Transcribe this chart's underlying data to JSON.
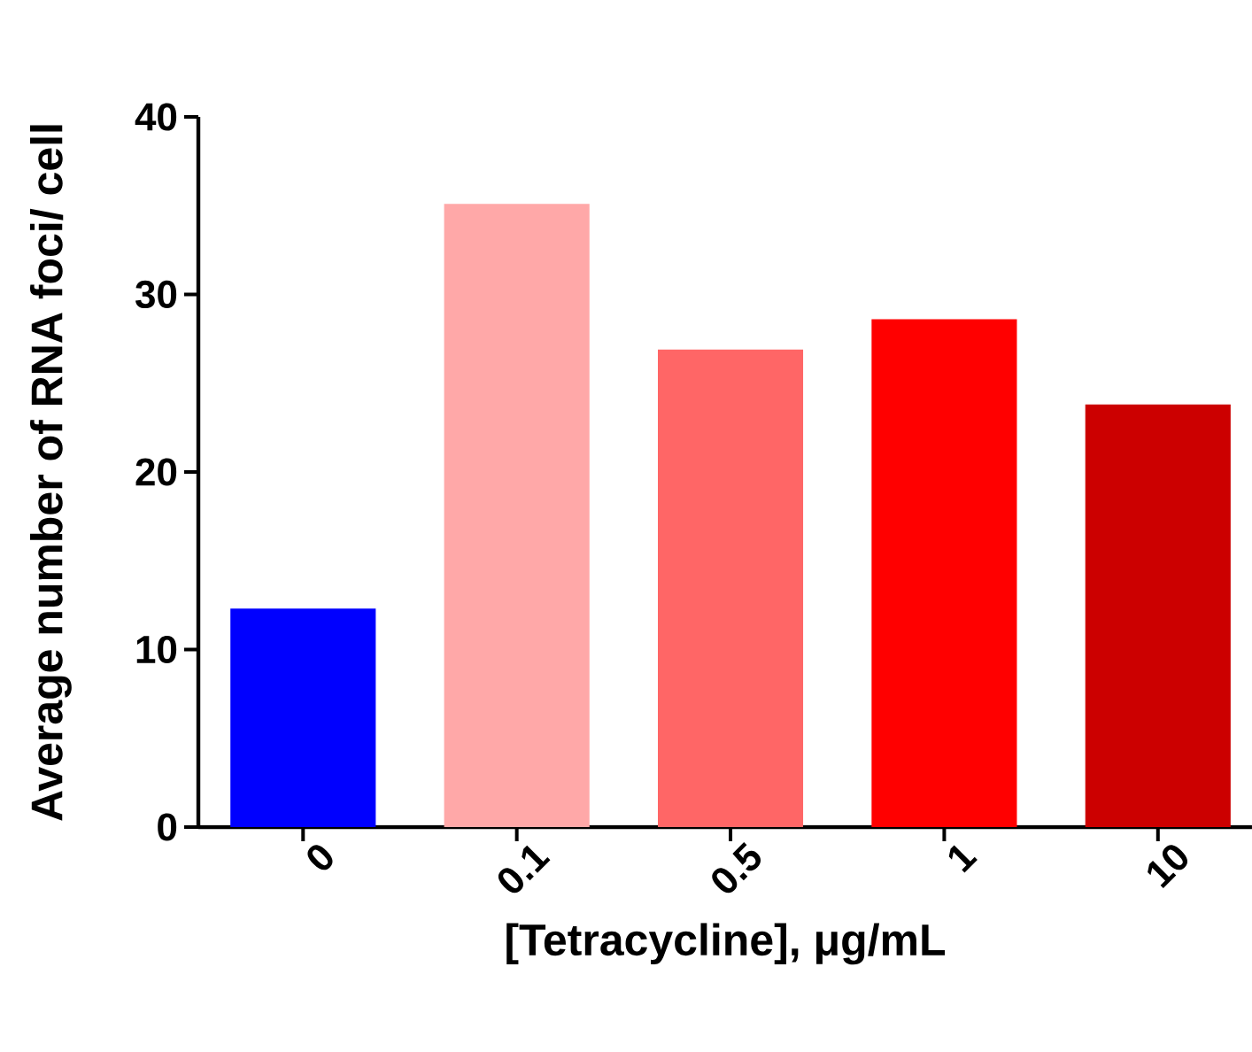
{
  "chart_data": {
    "type": "bar",
    "xlabel": "[Tetracycline], μg/mL",
    "ylabel": "Average number of RNA foci/ cell",
    "categories": [
      "0",
      "0.1",
      "0.5",
      "1",
      "10"
    ],
    "values": [
      12.3,
      35.1,
      26.9,
      28.6,
      23.8
    ],
    "colors": [
      "#0000ff",
      "#ffa8a8",
      "#ff6666",
      "#ff0000",
      "#cc0000"
    ],
    "ylim": [
      0,
      40
    ],
    "yticks": [
      0,
      10,
      20,
      30,
      40
    ],
    "grid": false
  }
}
